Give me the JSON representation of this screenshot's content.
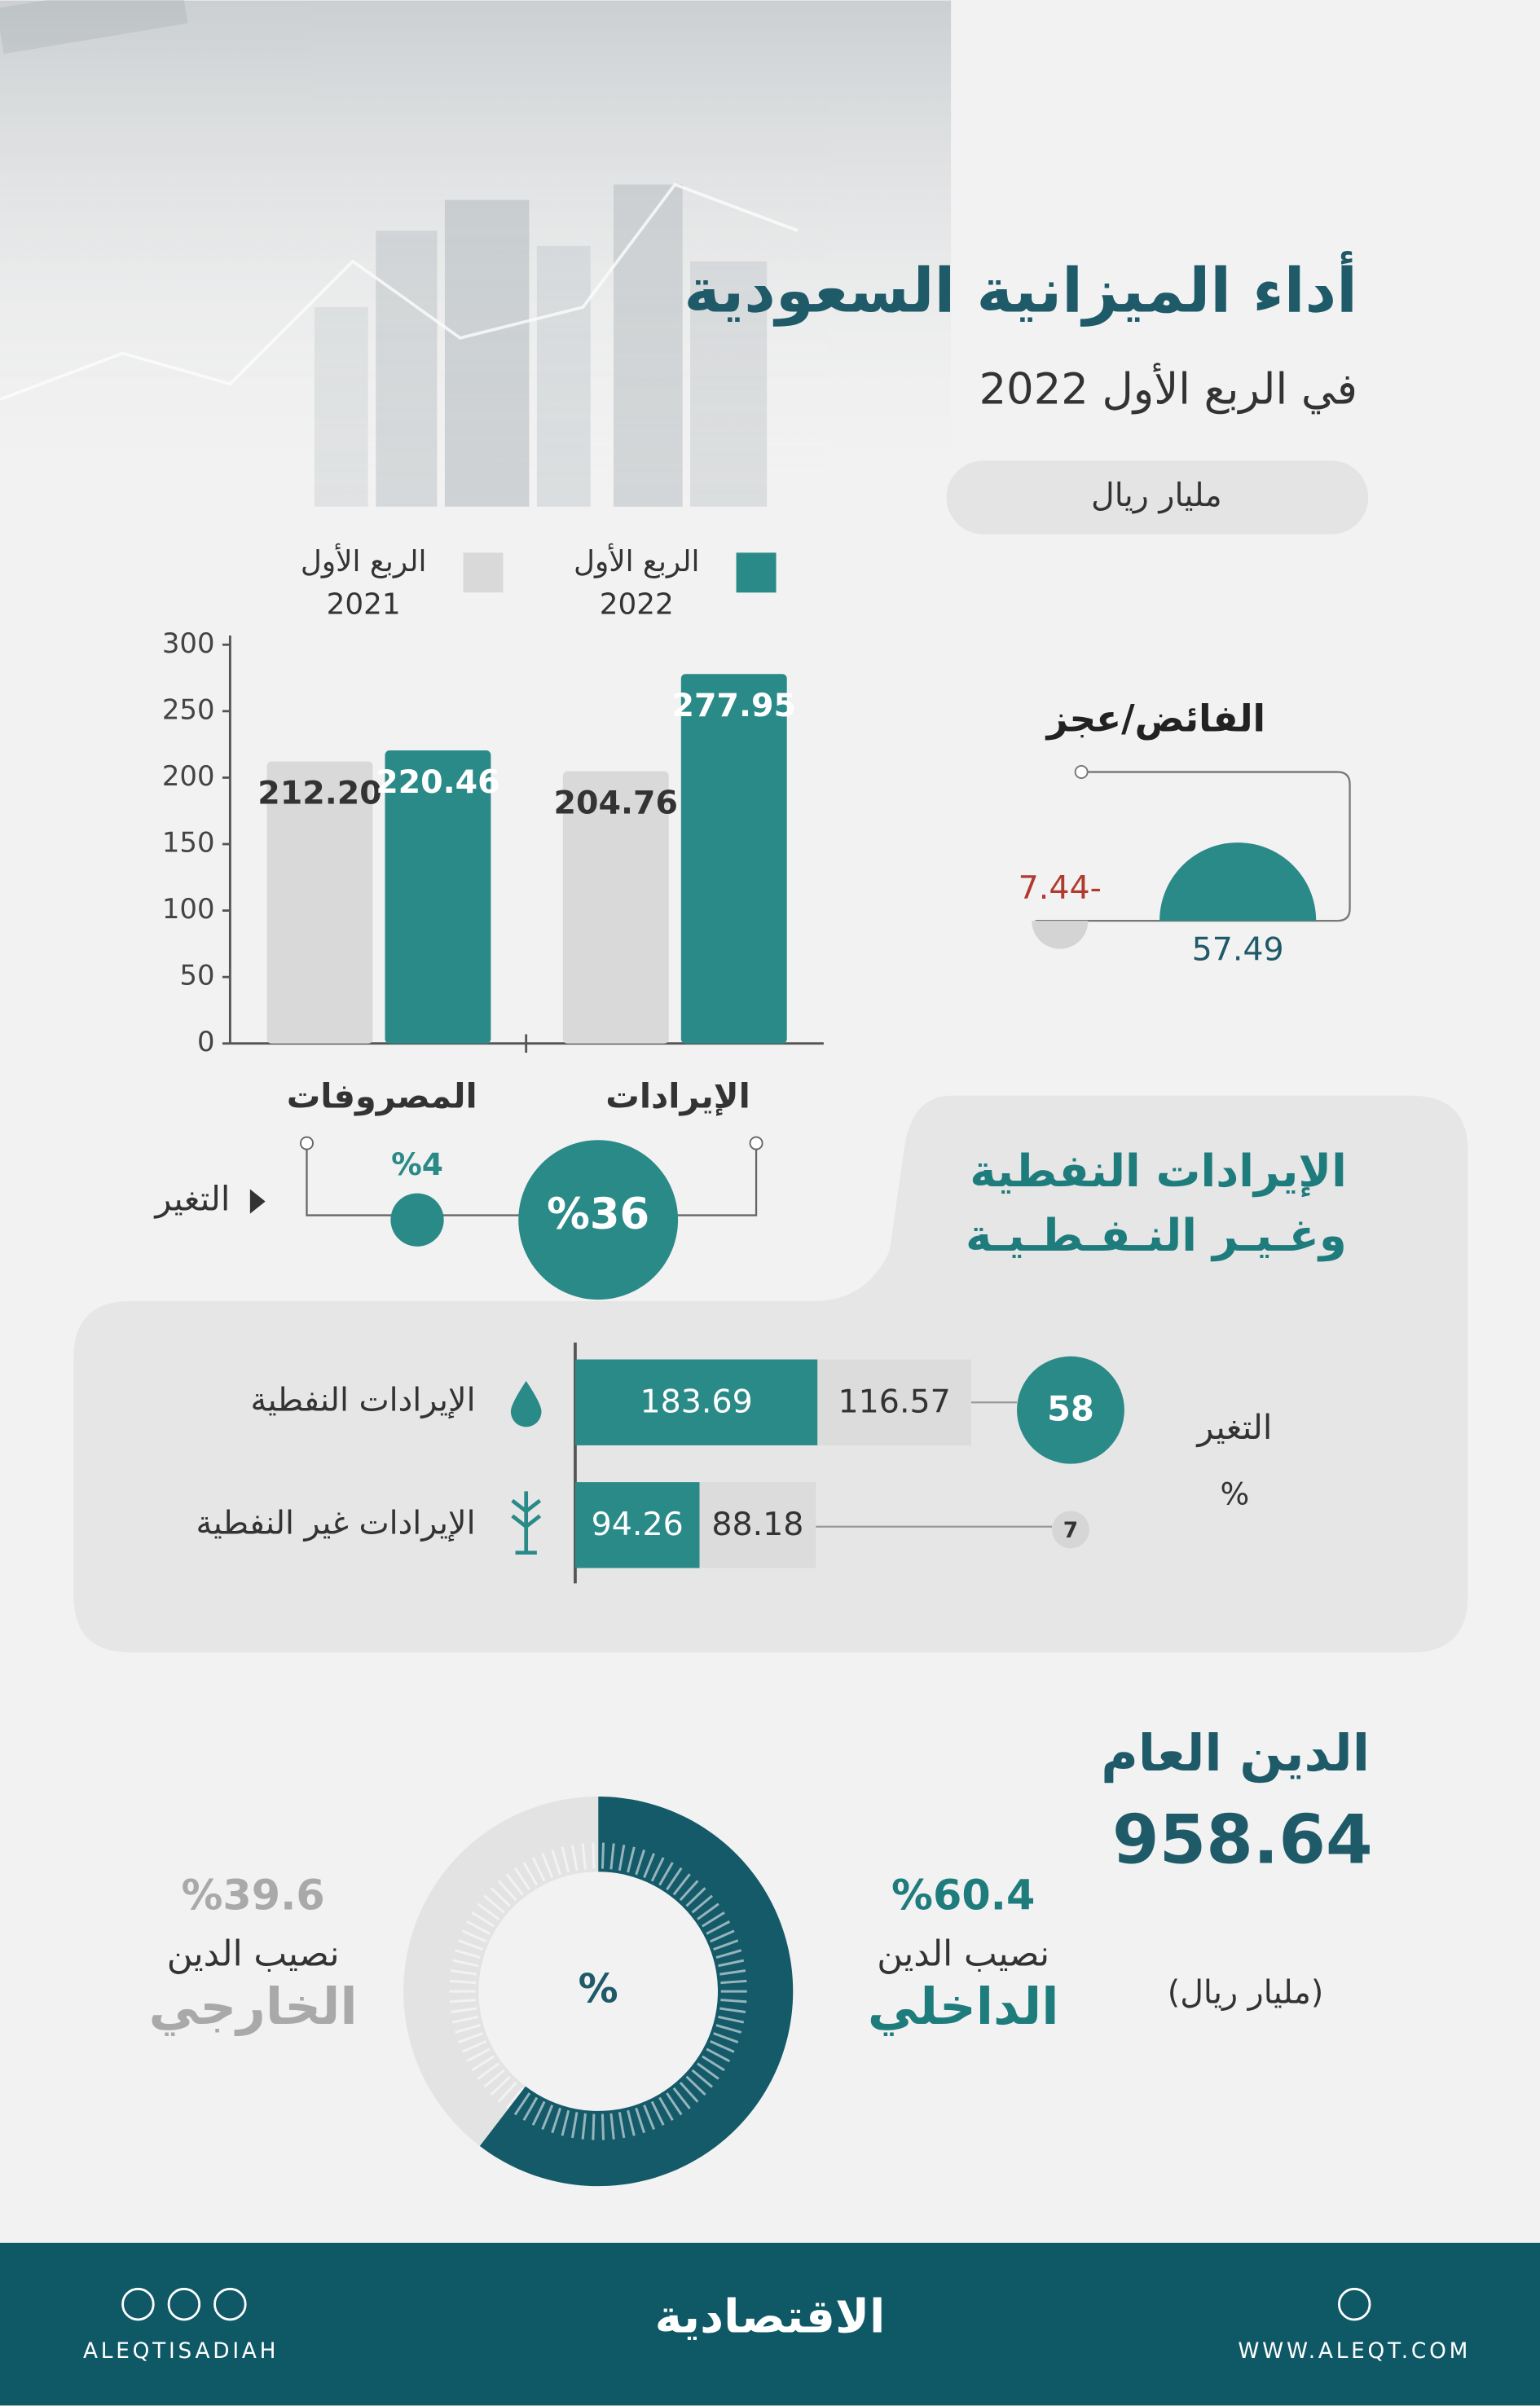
{
  "header": {
    "title": "أداء الميزانية السعودية",
    "subtitle": "في الربع الأول 2022",
    "unit": "مليار ريال"
  },
  "chart_data": [
    {
      "type": "bar",
      "categories": [
        "المصروفات",
        "الإيرادات"
      ],
      "series": [
        {
          "name": "الربع الأول 2021",
          "color": "#d9d9d9",
          "values": [
            212.2,
            204.76
          ],
          "value_labels": [
            "212.20",
            "204.76"
          ]
        },
        {
          "name": "الربع الأول 2022",
          "color": "#2a8a88",
          "values": [
            220.46,
            277.95
          ],
          "value_labels": [
            "220.46",
            "277.95"
          ]
        }
      ],
      "ylim": [
        0,
        300
      ],
      "yticks": [
        0,
        50,
        100,
        150,
        200,
        250,
        300
      ],
      "change": {
        "label": "التغير",
        "color": "#2a8a88",
        "values": [
          4,
          36
        ],
        "value_labels": [
          "%4",
          "%36"
        ]
      }
    },
    {
      "type": "semicircle",
      "title": "الفائض/عجز",
      "values": [
        57.49,
        -7.44
      ],
      "value_labels": [
        "57.49",
        "7.44-"
      ],
      "colors": [
        "#2a8a88",
        "#d4d4d4"
      ],
      "label_colors": [
        "#1f5a69",
        "#b03a2e"
      ]
    },
    {
      "type": "hbar",
      "title": "الإيرادات النفطية وغـيـر النـفـطـيـة",
      "categories": [
        "الإيرادات النفطية",
        "الإيرادات غير النفطية"
      ],
      "series": [
        {
          "color": "#2a8a88",
          "values": [
            183.69,
            94.26
          ]
        },
        {
          "color": "#dcdcdc",
          "values": [
            116.57,
            88.18
          ]
        }
      ],
      "change": {
        "label": "التغير",
        "unit": "%",
        "values": [
          58,
          7
        ]
      }
    },
    {
      "type": "donut",
      "title": "الدين العام",
      "total": 958.64,
      "unit": "(مليار ريال)",
      "center_label": "%",
      "prefix": "نصيب الدين",
      "categories": [
        "الداخلي",
        "الخارجي"
      ],
      "values": [
        60.4,
        39.6
      ],
      "value_labels": [
        "%60.4",
        "%39.6"
      ],
      "colors": [
        "#145a69",
        "#e3e3e3"
      ]
    }
  ],
  "footer": {
    "brand": "الاقتصادية",
    "handle": "ALEQTISADIAH",
    "website": "WWW.ALEQT.COM"
  }
}
